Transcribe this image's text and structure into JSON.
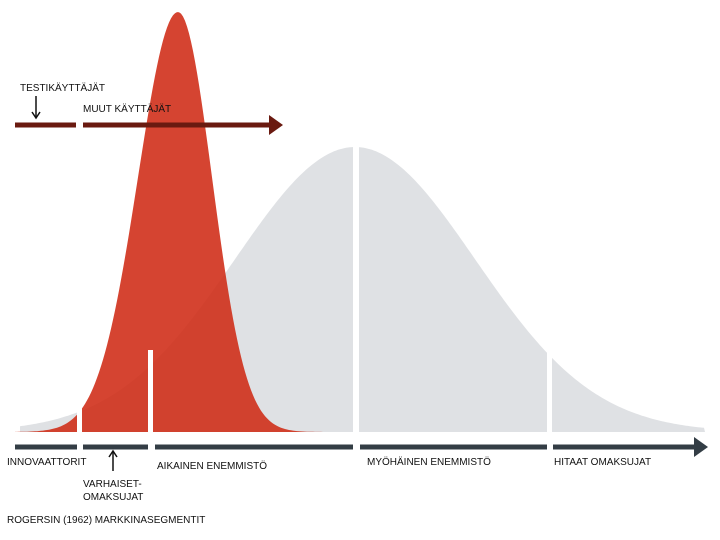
{
  "labels": {
    "testers": "TESTIKÄYTTÄJÄT",
    "other_users": "MUUT KÄYTTÄJÄT"
  },
  "segments": [
    {
      "name": "INNOVAATTORIT"
    },
    {
      "name": [
        "VARHAISET-",
        "OMAKSUJAT"
      ]
    },
    {
      "name": "AIKAINEN ENEMMISTÖ"
    },
    {
      "name": "MYÖHÄINEN ENEMMISTÖ"
    },
    {
      "name": "HITAAT OMAKSUJAT"
    }
  ],
  "caption": "ROGERSIN (1962) MARKKINASEGMENTIT"
}
